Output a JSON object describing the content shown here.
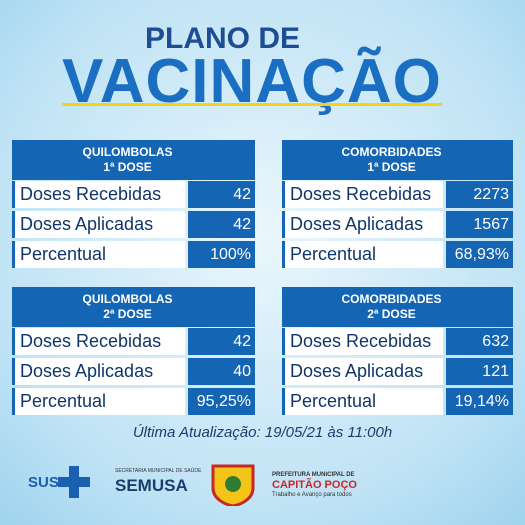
{
  "header": {
    "line1": "PLANO DE",
    "line2": "VACINAÇÃO"
  },
  "tables": [
    {
      "title": "QUILOMBOLAS",
      "subtitle": "1ª DOSE",
      "rows": [
        [
          "Doses Recebidas",
          "42"
        ],
        [
          "Doses Aplicadas",
          "42"
        ],
        [
          "Percentual",
          "100%"
        ]
      ]
    },
    {
      "title": "COMORBIDADES",
      "subtitle": "1ª DOSE",
      "rows": [
        [
          "Doses Recebidas",
          "2273"
        ],
        [
          "Doses Aplicadas",
          "1567"
        ],
        [
          "Percentual",
          "68,93%"
        ]
      ]
    },
    {
      "title": "QUILOMBOLAS",
      "subtitle": "2ª DOSE",
      "rows": [
        [
          "Doses Recebidas",
          "42"
        ],
        [
          "Doses Aplicadas",
          "40"
        ],
        [
          "Percentual",
          "95,25%"
        ]
      ]
    },
    {
      "title": "COMORBIDADES",
      "subtitle": "2ª DOSE",
      "rows": [
        [
          "Doses Recebidas",
          "632"
        ],
        [
          "Doses Aplicadas",
          "121"
        ],
        [
          "Percentual",
          "19,14%"
        ]
      ]
    }
  ],
  "footer": {
    "update": "Última Atualização: 19/05/21 às 11:00h",
    "sus": "SUS",
    "semusa_caption": "SECRETARIA MUNICIPAL DE SAÚDE",
    "semusa": "SEMUSA",
    "prefeitura_caption": "PREFEITURA MUNICIPAL DE",
    "city": "CAPITÃO POÇO",
    "slogan": "Trabalho e Avanço para todos"
  }
}
